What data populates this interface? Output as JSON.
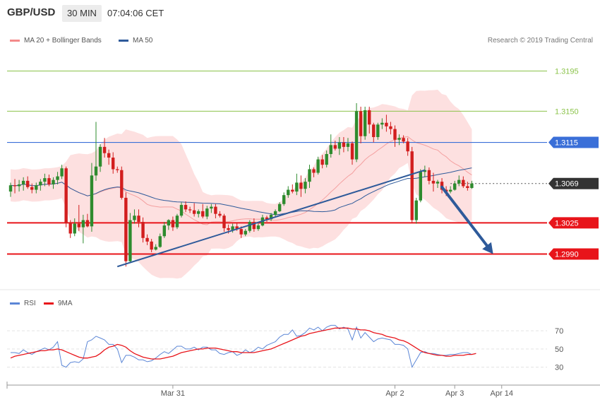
{
  "header": {
    "symbol": "GBP/USD",
    "timeframe": "30 MIN",
    "time": "07:04:06 CET"
  },
  "legend_main": [
    {
      "label": "MA 20 + Bollinger Bands",
      "color": "#f48a8a"
    },
    {
      "label": "MA 50",
      "color": "#2e5a9a"
    }
  ],
  "research_credit": "Research © 2019 Trading Central",
  "legend_rsi": [
    {
      "label": "RSI",
      "color": "#5b86d6"
    },
    {
      "label": "9MA",
      "color": "#e8141a"
    }
  ],
  "colors": {
    "bull": "#2e8b2e",
    "bear": "#d21e1e",
    "band_fill": "#fde0e0",
    "ma20": "#f4a0a0",
    "ma50": "#2e5a9a",
    "trend": "#2e5a9a",
    "resistance_green": "#8bc34a",
    "pivot_blue": "#3a6fd8",
    "support_red": "#e8141a",
    "arrow": "#2e5a9a",
    "rsi": "#5b86d6",
    "rsi_ma": "#e8141a"
  },
  "chart_data": [
    {
      "type": "candlestick",
      "title": "",
      "ylim": [
        1.2958,
        1.3227
      ],
      "levels": [
        {
          "value": 1.3195,
          "label": "1.3195",
          "kind": "resistance"
        },
        {
          "value": 1.315,
          "label": "1.3150",
          "kind": "resistance"
        },
        {
          "value": 1.3115,
          "label": "1.3115",
          "kind": "pivot"
        },
        {
          "value": 1.3069,
          "label": "1.3069",
          "kind": "last"
        },
        {
          "value": 1.3025,
          "label": "1.3025",
          "kind": "support"
        },
        {
          "value": 1.299,
          "label": "1.2990",
          "kind": "support"
        }
      ],
      "last_price": 1.3069,
      "x_ticks": [
        {
          "label": "Mar 31",
          "index": 38
        },
        {
          "label": "Apr 2",
          "index": 90
        },
        {
          "label": "Apr 3",
          "index": 104
        },
        {
          "label": "Apr 14",
          "index": 115
        }
      ],
      "trendline": {
        "from": [
          25,
          1.2976
        ],
        "to": [
          97,
          1.3084
        ]
      },
      "projection_arrow": {
        "from": [
          101,
          1.3065
        ],
        "to": [
          113,
          1.299
        ]
      },
      "n_slots": 127,
      "candles": [
        [
          1.306,
          1.307,
          1.3054,
          1.3067
        ],
        [
          1.3067,
          1.3074,
          1.3058,
          1.3066
        ],
        [
          1.3066,
          1.3073,
          1.306,
          1.3068
        ],
        [
          1.3068,
          1.3076,
          1.3061,
          1.3072
        ],
        [
          1.3072,
          1.3077,
          1.3063,
          1.3065
        ],
        [
          1.3065,
          1.3069,
          1.3058,
          1.3062
        ],
        [
          1.3062,
          1.307,
          1.3058,
          1.3067
        ],
        [
          1.3067,
          1.3074,
          1.3061,
          1.3071
        ],
        [
          1.3071,
          1.308,
          1.3066,
          1.3075
        ],
        [
          1.3075,
          1.3079,
          1.3066,
          1.3068
        ],
        [
          1.3068,
          1.3076,
          1.3063,
          1.3073
        ],
        [
          1.3073,
          1.3082,
          1.3068,
          1.3077
        ],
        [
          1.3077,
          1.309,
          1.3074,
          1.3086
        ],
        [
          1.3086,
          1.3088,
          1.302,
          1.3025
        ],
        [
          1.3025,
          1.3028,
          1.3008,
          1.3013
        ],
        [
          1.3013,
          1.303,
          1.301,
          1.3024
        ],
        [
          1.3024,
          1.3045,
          1.3016,
          1.302
        ],
        [
          1.302,
          1.3034,
          1.3002,
          1.3028
        ],
        [
          1.3028,
          1.3035,
          1.302,
          1.3021
        ],
        [
          1.3021,
          1.3092,
          1.3015,
          1.3078
        ],
        [
          1.3078,
          1.3138,
          1.3072,
          1.3088
        ],
        [
          1.3088,
          1.3113,
          1.3082,
          1.311
        ],
        [
          1.311,
          1.312,
          1.3098,
          1.3103
        ],
        [
          1.3103,
          1.3107,
          1.309,
          1.3098
        ],
        [
          1.3098,
          1.3104,
          1.308,
          1.3085
        ],
        [
          1.3085,
          1.3088,
          1.3081,
          1.3084
        ],
        [
          1.3084,
          1.3088,
          1.3051,
          1.3053
        ],
        [
          1.3053,
          1.3059,
          1.2976,
          1.2982
        ],
        [
          1.2982,
          1.3036,
          1.2981,
          1.3028
        ],
        [
          1.3028,
          1.304,
          1.3024,
          1.3033
        ],
        [
          1.3033,
          1.304,
          1.302,
          1.3026
        ],
        [
          1.3026,
          1.3031,
          1.3003,
          1.3008
        ],
        [
          1.3008,
          1.3012,
          1.3,
          1.3004
        ],
        [
          1.3004,
          1.3007,
          1.2992,
          1.2995
        ],
        [
          1.2995,
          1.3001,
          1.2994,
          1.2998
        ],
        [
          1.2998,
          1.3013,
          1.2997,
          1.301
        ],
        [
          1.301,
          1.3026,
          1.3008,
          1.3022
        ],
        [
          1.3022,
          1.3029,
          1.3017,
          1.3028
        ],
        [
          1.3028,
          1.3032,
          1.3016,
          1.302
        ],
        [
          1.302,
          1.3035,
          1.3018,
          1.3033
        ],
        [
          1.3033,
          1.3048,
          1.3031,
          1.3045
        ],
        [
          1.3045,
          1.3049,
          1.3037,
          1.304
        ],
        [
          1.304,
          1.3043,
          1.3036,
          1.3039
        ],
        [
          1.3039,
          1.3047,
          1.3032,
          1.3035
        ],
        [
          1.3035,
          1.304,
          1.3031,
          1.3038
        ],
        [
          1.3038,
          1.3046,
          1.303,
          1.3032
        ],
        [
          1.3032,
          1.3044,
          1.3029,
          1.3041
        ],
        [
          1.3041,
          1.3046,
          1.3036,
          1.3043
        ],
        [
          1.3043,
          1.3046,
          1.303,
          1.3035
        ],
        [
          1.3035,
          1.3038,
          1.3031,
          1.3033
        ],
        [
          1.3033,
          1.3035,
          1.3015,
          1.3019
        ],
        [
          1.3019,
          1.3023,
          1.3013,
          1.3017
        ],
        [
          1.3017,
          1.3024,
          1.3014,
          1.3021
        ],
        [
          1.3021,
          1.3025,
          1.3016,
          1.3018
        ],
        [
          1.3018,
          1.3021,
          1.3008,
          1.3012
        ],
        [
          1.3012,
          1.3018,
          1.301,
          1.3016
        ],
        [
          1.3016,
          1.3028,
          1.3014,
          1.3026
        ],
        [
          1.3026,
          1.303,
          1.3015,
          1.3018
        ],
        [
          1.3018,
          1.3024,
          1.3016,
          1.3022
        ],
        [
          1.3022,
          1.3034,
          1.3021,
          1.3031
        ],
        [
          1.3031,
          1.3033,
          1.3026,
          1.3029
        ],
        [
          1.3029,
          1.3036,
          1.3027,
          1.3034
        ],
        [
          1.3034,
          1.304,
          1.3032,
          1.3038
        ],
        [
          1.3038,
          1.3048,
          1.3037,
          1.3046
        ],
        [
          1.3046,
          1.3059,
          1.3044,
          1.3056
        ],
        [
          1.3056,
          1.3066,
          1.3053,
          1.3062
        ],
        [
          1.3062,
          1.3068,
          1.3058,
          1.306
        ],
        [
          1.306,
          1.308,
          1.3056,
          1.307
        ],
        [
          1.307,
          1.3078,
          1.3054,
          1.3063
        ],
        [
          1.3063,
          1.3075,
          1.3058,
          1.3071
        ],
        [
          1.3071,
          1.309,
          1.3064,
          1.3085
        ],
        [
          1.3085,
          1.3087,
          1.3076,
          1.3081
        ],
        [
          1.3081,
          1.3099,
          1.3079,
          1.3096
        ],
        [
          1.3096,
          1.3101,
          1.3086,
          1.309
        ],
        [
          1.309,
          1.3106,
          1.3087,
          1.3102
        ],
        [
          1.3102,
          1.3124,
          1.3098,
          1.3112
        ],
        [
          1.3112,
          1.3117,
          1.3106,
          1.3108
        ],
        [
          1.3108,
          1.3121,
          1.3101,
          1.3115
        ],
        [
          1.3115,
          1.3121,
          1.3104,
          1.311
        ],
        [
          1.311,
          1.312,
          1.3105,
          1.3114
        ],
        [
          1.3114,
          1.3116,
          1.309,
          1.3096
        ],
        [
          1.3096,
          1.3159,
          1.3093,
          1.315
        ],
        [
          1.315,
          1.3155,
          1.3114,
          1.3122
        ],
        [
          1.3122,
          1.3155,
          1.3118,
          1.3151
        ],
        [
          1.3151,
          1.3155,
          1.3125,
          1.3135
        ],
        [
          1.3135,
          1.3137,
          1.3115,
          1.3121
        ],
        [
          1.3121,
          1.3137,
          1.3118,
          1.3135
        ],
        [
          1.3135,
          1.3142,
          1.313,
          1.3137
        ],
        [
          1.3137,
          1.3146,
          1.3127,
          1.3133
        ],
        [
          1.3133,
          1.3138,
          1.3124,
          1.313
        ],
        [
          1.313,
          1.3134,
          1.311,
          1.3118
        ],
        [
          1.3118,
          1.3124,
          1.3112,
          1.312
        ],
        [
          1.312,
          1.3123,
          1.3114,
          1.3116
        ],
        [
          1.3116,
          1.312,
          1.31,
          1.3105
        ],
        [
          1.3105,
          1.311,
          1.3025,
          1.3028
        ],
        [
          1.3028,
          1.3053,
          1.3024,
          1.305
        ],
        [
          1.305,
          1.3085,
          1.3048,
          1.3082
        ],
        [
          1.3082,
          1.3089,
          1.3076,
          1.3084
        ],
        [
          1.3084,
          1.3087,
          1.3068,
          1.3072
        ],
        [
          1.3072,
          1.3081,
          1.306,
          1.3069
        ],
        [
          1.3069,
          1.3073,
          1.3064,
          1.3071
        ],
        [
          1.3071,
          1.3075,
          1.3058,
          1.3062
        ],
        [
          1.3062,
          1.3066,
          1.3055,
          1.306
        ],
        [
          1.306,
          1.3066,
          1.3058,
          1.3062
        ],
        [
          1.3062,
          1.3072,
          1.3061,
          1.3069
        ],
        [
          1.3069,
          1.3078,
          1.3066,
          1.3073
        ],
        [
          1.3073,
          1.3077,
          1.3064,
          1.3066
        ],
        [
          1.3066,
          1.3071,
          1.3061,
          1.3064
        ],
        [
          1.3064,
          1.3072,
          1.3063,
          1.3069
        ]
      ]
    },
    {
      "type": "line",
      "title": "",
      "ylim": [
        18,
        88
      ],
      "y_ticks": [
        30,
        50,
        70
      ],
      "grid": true,
      "series": [
        {
          "name": "RSI",
          "values": [
            46,
            46,
            45,
            49,
            46,
            44,
            47,
            49,
            51,
            49,
            52,
            58,
            32,
            30,
            35,
            36,
            35,
            39,
            58,
            60,
            64,
            62,
            60,
            55,
            55,
            50,
            35,
            43,
            43,
            41,
            38,
            38,
            36,
            37,
            40,
            44,
            47,
            45,
            49,
            53,
            53,
            50,
            50,
            52,
            49,
            52,
            52,
            49,
            49,
            45,
            44,
            46,
            47,
            43,
            45,
            49,
            46,
            48,
            52,
            50,
            54,
            56,
            58,
            63,
            66,
            66,
            71,
            64,
            65,
            68,
            73,
            71,
            74,
            70,
            74,
            76,
            76,
            72,
            74,
            72,
            60,
            74,
            62,
            68,
            63,
            58,
            61,
            62,
            61,
            60,
            55,
            55,
            54,
            50,
            30,
            38,
            46,
            47,
            45,
            45,
            44,
            43,
            43,
            44,
            44,
            45,
            46,
            46,
            44,
            45
          ]
        },
        {
          "name": "9MA",
          "values": [
            40,
            42,
            43,
            44,
            45,
            46,
            47,
            48,
            48,
            49,
            49,
            50,
            49,
            47,
            45,
            43,
            41,
            40,
            40,
            41,
            42,
            45,
            49,
            52,
            53,
            55,
            54,
            52,
            48,
            45,
            43,
            41,
            40,
            39,
            39,
            39,
            40,
            41,
            42,
            44,
            46,
            47,
            48,
            49,
            50,
            50,
            51,
            51,
            51,
            50,
            49,
            48,
            47,
            47,
            46,
            46,
            46,
            46,
            47,
            48,
            49,
            50,
            52,
            54,
            56,
            58,
            60,
            62,
            64,
            65,
            67,
            68,
            69,
            70,
            71,
            72,
            73,
            73,
            73,
            73,
            72,
            72,
            71,
            71,
            70,
            68,
            67,
            66,
            64,
            63,
            62,
            60,
            59,
            57,
            54,
            51,
            48,
            46,
            45,
            44,
            43,
            43,
            42,
            42,
            43,
            43,
            43,
            44,
            44,
            45
          ]
        }
      ]
    }
  ]
}
